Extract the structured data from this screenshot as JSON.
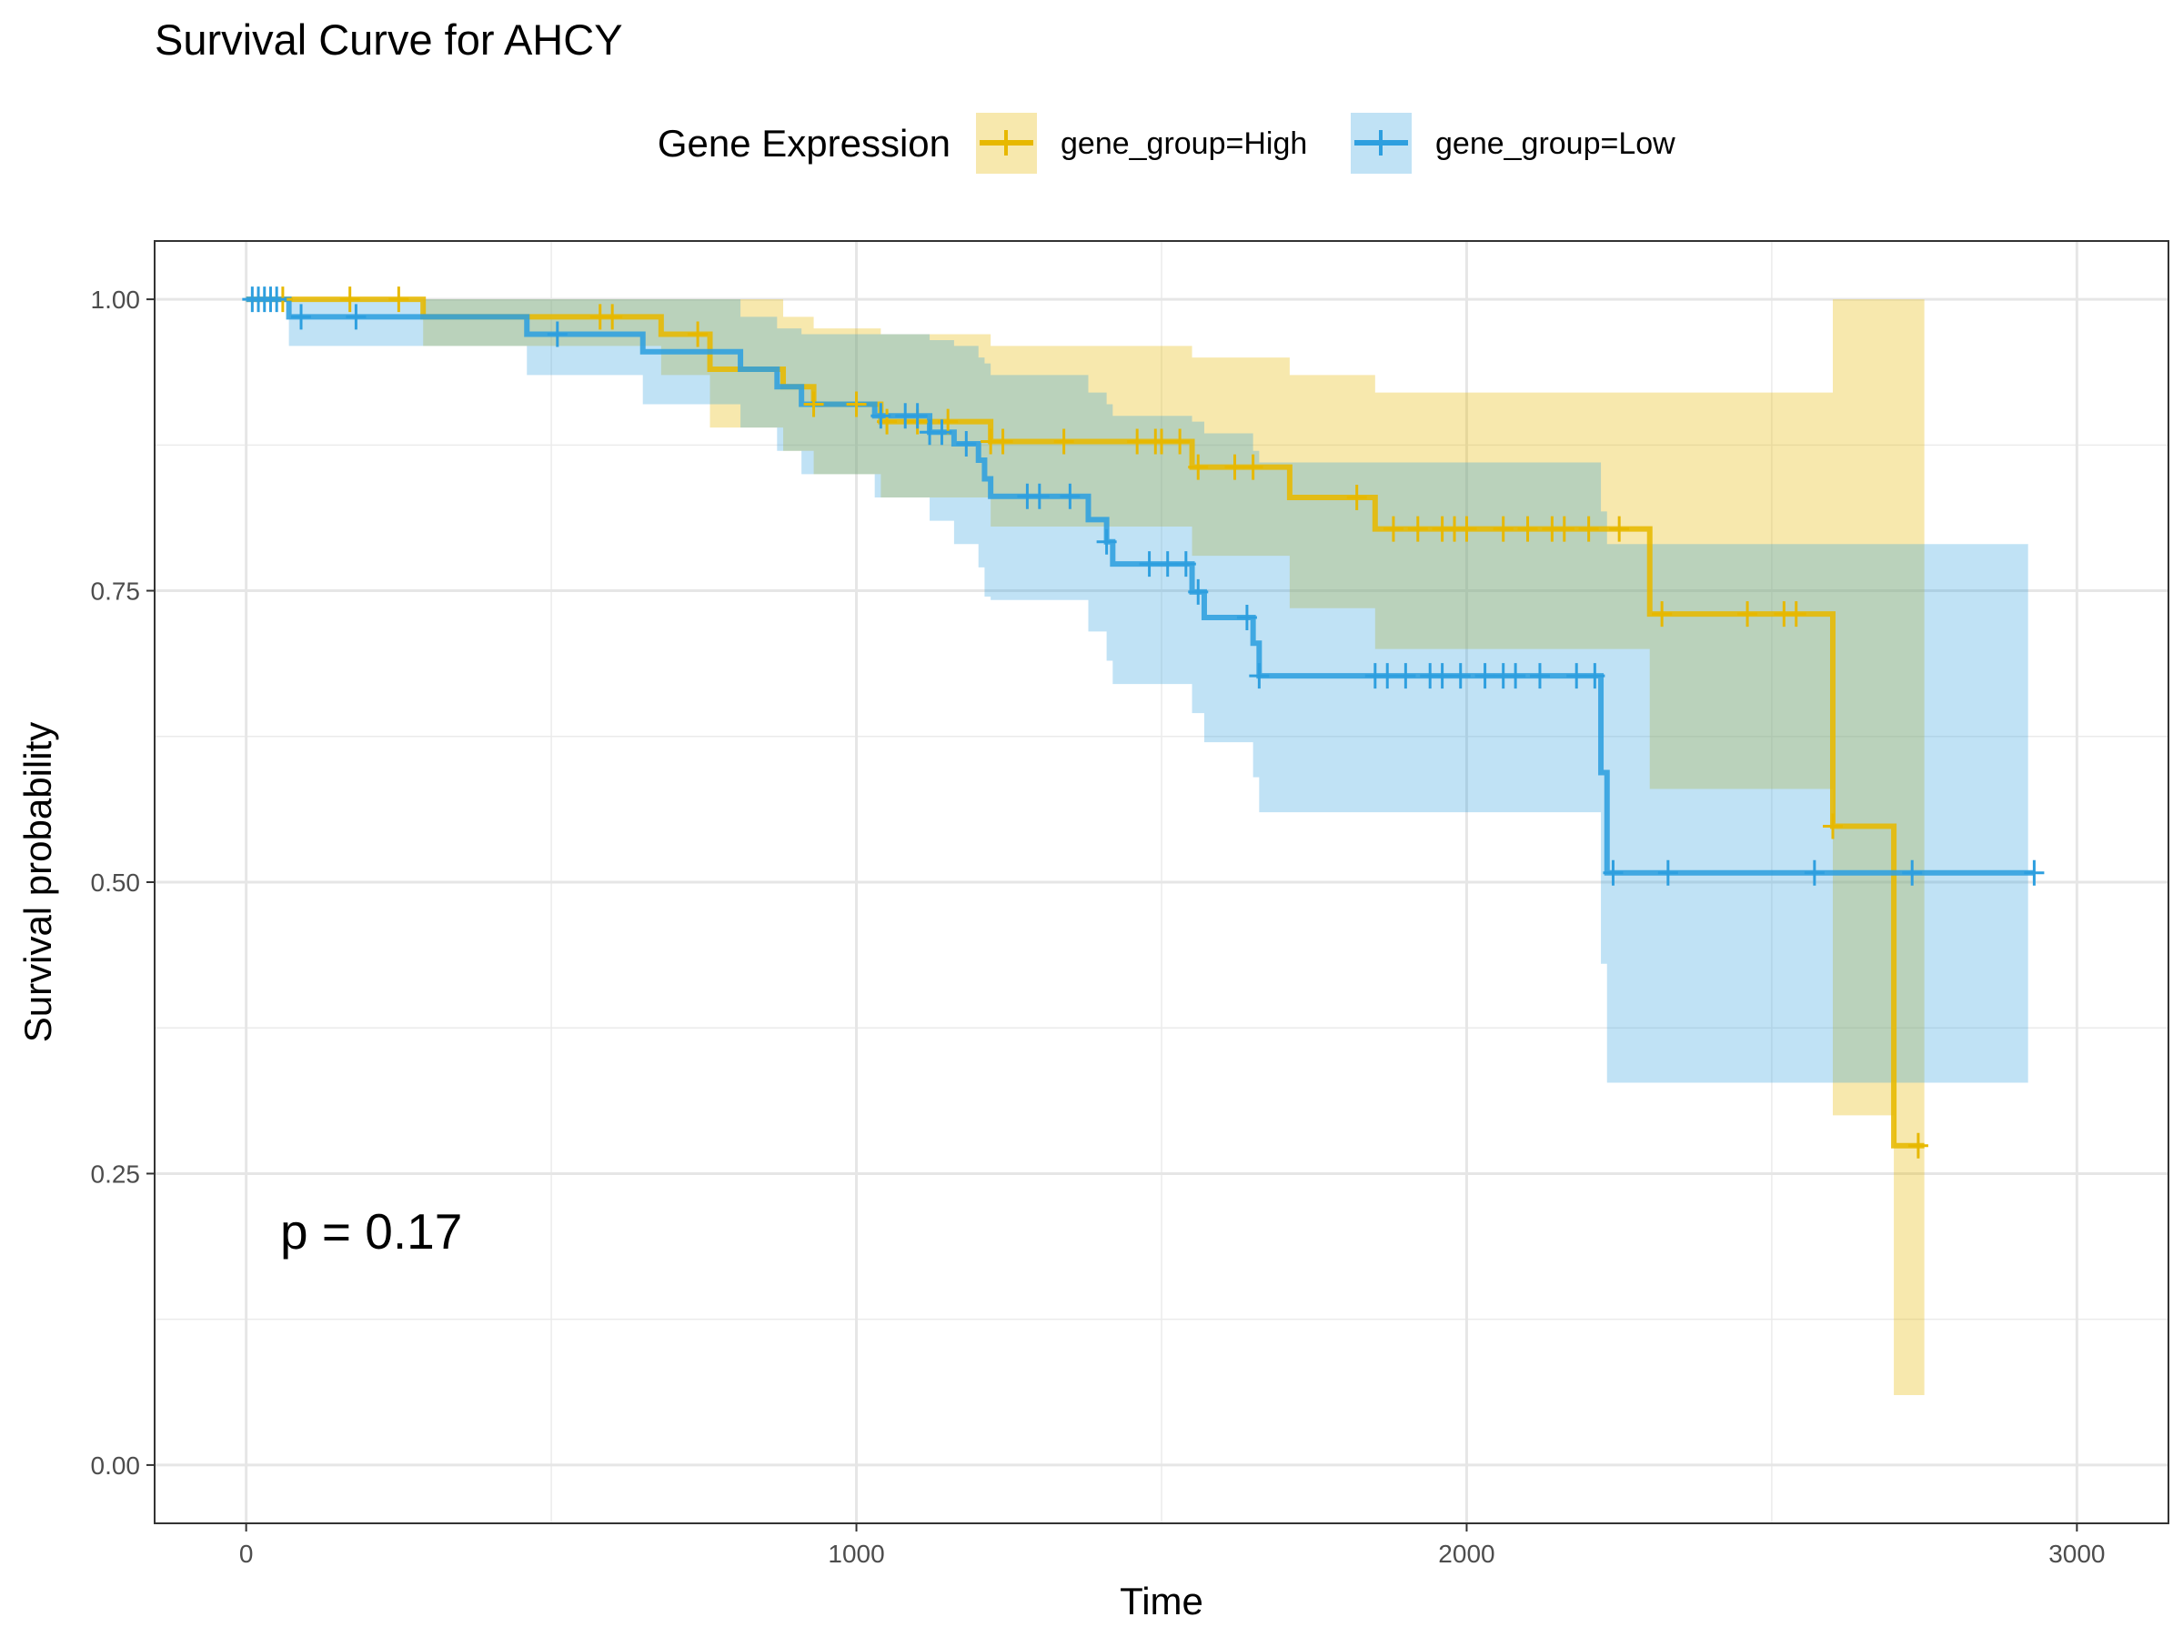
{
  "chart_data": {
    "type": "line",
    "subtype": "kaplan-meier-survival",
    "title": "Survival Curve for AHCY",
    "xlabel": "Time",
    "ylabel": "Survival probability",
    "xlim": [
      -150,
      3150
    ],
    "ylim": [
      -0.05,
      1.05
    ],
    "x_ticks": [
      0,
      1000,
      2000,
      3000
    ],
    "x_tick_labels": [
      "0",
      "1000",
      "2000",
      "3000"
    ],
    "y_ticks": [
      0,
      0.25,
      0.5,
      0.75,
      1
    ],
    "y_tick_labels": [
      "0.00",
      "0.25",
      "0.50",
      "0.75",
      "1.00"
    ],
    "grid": true,
    "legend": {
      "title": "Gene Expression",
      "position": "top",
      "entries": [
        "gene_group=High",
        "gene_group=Low"
      ]
    },
    "annotation": "p = 0.17",
    "series": [
      {
        "name": "gene_group=High",
        "color": "#E7B800",
        "steps": [
          [
            0,
            1.0
          ],
          [
            290,
            0.985
          ],
          [
            680,
            0.97
          ],
          [
            760,
            0.94
          ],
          [
            880,
            0.925
          ],
          [
            930,
            0.91
          ],
          [
            1040,
            0.895
          ],
          [
            1220,
            0.878
          ],
          [
            1550,
            0.856
          ],
          [
            1710,
            0.83
          ],
          [
            1850,
            0.803
          ],
          [
            2300,
            0.73
          ],
          [
            2600,
            0.548
          ],
          [
            2700,
            0.274
          ],
          [
            2750,
            0.274
          ]
        ],
        "ci_upper": [
          [
            0,
            1.0
          ],
          [
            290,
            1.0
          ],
          [
            680,
            1.0
          ],
          [
            760,
            1.0
          ],
          [
            880,
            0.985
          ],
          [
            930,
            0.975
          ],
          [
            1040,
            0.97
          ],
          [
            1220,
            0.96
          ],
          [
            1550,
            0.95
          ],
          [
            1710,
            0.935
          ],
          [
            1850,
            0.92
          ],
          [
            2300,
            0.92
          ],
          [
            2600,
            1.0
          ],
          [
            2700,
            1.0
          ],
          [
            2750,
            1.0
          ]
        ],
        "ci_lower": [
          [
            0,
            1.0
          ],
          [
            290,
            0.96
          ],
          [
            680,
            0.935
          ],
          [
            760,
            0.89
          ],
          [
            880,
            0.87
          ],
          [
            930,
            0.85
          ],
          [
            1040,
            0.83
          ],
          [
            1220,
            0.805
          ],
          [
            1550,
            0.78
          ],
          [
            1710,
            0.735
          ],
          [
            1850,
            0.7
          ],
          [
            2300,
            0.58
          ],
          [
            2600,
            0.3
          ],
          [
            2700,
            0.06
          ],
          [
            2750,
            0.06
          ]
        ],
        "censor_times": [
          60,
          170,
          250,
          580,
          600,
          740,
          930,
          1000,
          1050,
          1100,
          1150,
          1220,
          1240,
          1340,
          1460,
          1490,
          1500,
          1530,
          1560,
          1620,
          1650,
          1820,
          1880,
          1920,
          1960,
          1980,
          2000,
          2060,
          2100,
          2140,
          2160,
          2200,
          2250,
          2320,
          2460,
          2520,
          2540,
          2600,
          2740
        ]
      },
      {
        "name": "gene_group=Low",
        "color": "#2E9FDF",
        "steps": [
          [
            0,
            1.0
          ],
          [
            70,
            0.985
          ],
          [
            460,
            0.97
          ],
          [
            650,
            0.955
          ],
          [
            810,
            0.94
          ],
          [
            870,
            0.925
          ],
          [
            910,
            0.91
          ],
          [
            1030,
            0.9
          ],
          [
            1120,
            0.886
          ],
          [
            1160,
            0.876
          ],
          [
            1200,
            0.862
          ],
          [
            1210,
            0.846
          ],
          [
            1220,
            0.831
          ],
          [
            1380,
            0.811
          ],
          [
            1410,
            0.792
          ],
          [
            1420,
            0.773
          ],
          [
            1550,
            0.749
          ],
          [
            1570,
            0.727
          ],
          [
            1650,
            0.705
          ],
          [
            1660,
            0.677
          ],
          [
            2220,
            0.594
          ],
          [
            2230,
            0.508
          ],
          [
            2930,
            0.508
          ]
        ],
        "ci_upper": [
          [
            0,
            1.0
          ],
          [
            70,
            1.0
          ],
          [
            460,
            1.0
          ],
          [
            650,
            1.0
          ],
          [
            810,
            0.985
          ],
          [
            870,
            0.975
          ],
          [
            910,
            0.97
          ],
          [
            1030,
            0.97
          ],
          [
            1120,
            0.965
          ],
          [
            1160,
            0.96
          ],
          [
            1200,
            0.95
          ],
          [
            1210,
            0.945
          ],
          [
            1220,
            0.935
          ],
          [
            1380,
            0.92
          ],
          [
            1410,
            0.91
          ],
          [
            1420,
            0.9
          ],
          [
            1550,
            0.895
          ],
          [
            1570,
            0.885
          ],
          [
            1650,
            0.87
          ],
          [
            1660,
            0.86
          ],
          [
            2220,
            0.818
          ],
          [
            2230,
            0.79
          ],
          [
            2920,
            0.79
          ]
        ],
        "ci_lower": [
          [
            0,
            1.0
          ],
          [
            70,
            0.96
          ],
          [
            460,
            0.935
          ],
          [
            650,
            0.91
          ],
          [
            810,
            0.89
          ],
          [
            870,
            0.87
          ],
          [
            910,
            0.85
          ],
          [
            1030,
            0.83
          ],
          [
            1120,
            0.81
          ],
          [
            1160,
            0.79
          ],
          [
            1200,
            0.77
          ],
          [
            1210,
            0.745
          ],
          [
            1220,
            0.742
          ],
          [
            1380,
            0.715
          ],
          [
            1410,
            0.69
          ],
          [
            1420,
            0.67
          ],
          [
            1550,
            0.645
          ],
          [
            1570,
            0.62
          ],
          [
            1650,
            0.59
          ],
          [
            1660,
            0.56
          ],
          [
            2220,
            0.43
          ],
          [
            2230,
            0.328
          ],
          [
            2920,
            0.328
          ]
        ],
        "censor_times": [
          10,
          20,
          30,
          40,
          50,
          90,
          180,
          510,
          1040,
          1080,
          1100,
          1120,
          1140,
          1180,
          1280,
          1300,
          1350,
          1410,
          1480,
          1510,
          1540,
          1560,
          1640,
          1660,
          1850,
          1870,
          1900,
          1940,
          1960,
          1990,
          2030,
          2060,
          2080,
          2120,
          2180,
          2210,
          2240,
          2330,
          2570,
          2730,
          2930
        ]
      }
    ]
  }
}
